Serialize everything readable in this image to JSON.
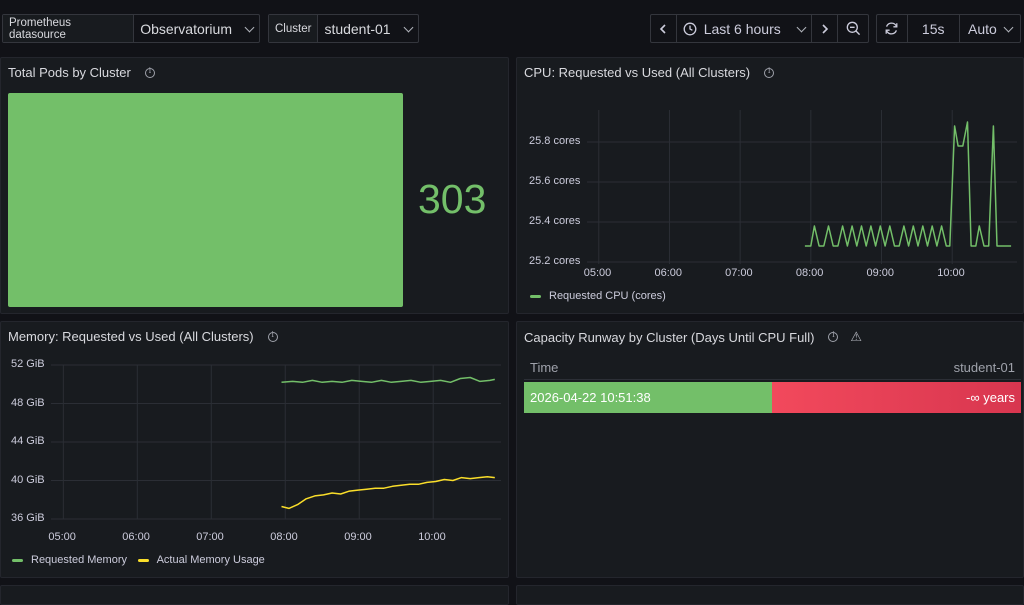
{
  "toolbar": {
    "datasource_label": "Prometheus datasource",
    "datasource_value": "Observatorium",
    "cluster_label": "Cluster",
    "cluster_value": "student-01",
    "time_range": "Last 6 hours",
    "refresh_interval": "15s",
    "auto_label": "Auto"
  },
  "panels": {
    "pods": {
      "title": "Total Pods by Cluster",
      "value": "303",
      "color": "#73bf69"
    },
    "cpu": {
      "title": "CPU: Requested vs Used (All Clusters)"
    },
    "memory": {
      "title": "Memory: Requested vs Used (All Clusters)"
    },
    "runway": {
      "title": "Capacity Runway by Cluster (Days Until CPU Full)",
      "col_time": "Time",
      "col_cluster": "student-01",
      "row_time": "2026-04-22 10:51:38",
      "row_value": "-∞ years",
      "green": "#73bf69",
      "red": "#f2495c"
    }
  },
  "chart_data": [
    {
      "type": "line",
      "title": "CPU: Requested vs Used (All Clusters)",
      "x_ticks": [
        "05:00",
        "06:00",
        "07:00",
        "08:00",
        "09:00",
        "10:00"
      ],
      "y_ticks": [
        "25.2 cores",
        "25.4 cores",
        "25.6 cores",
        "25.8 cores"
      ],
      "y_tick_values": [
        25.2,
        25.4,
        25.6,
        25.8
      ],
      "xlim": [
        "04:50",
        "10:55"
      ],
      "ylim": [
        25.19,
        25.96
      ],
      "grid": true,
      "legend_position": "bottom-left",
      "series": [
        {
          "name": "Requested CPU (cores)",
          "color": "#73bf69",
          "x": [
            "07:55",
            "08:00",
            "08:03",
            "08:07",
            "08:11",
            "08:15",
            "08:19",
            "08:23",
            "08:27",
            "08:31",
            "08:35",
            "08:39",
            "08:43",
            "08:47",
            "08:51",
            "08:55",
            "08:59",
            "09:03",
            "09:07",
            "09:11",
            "09:15",
            "09:19",
            "09:23",
            "09:27",
            "09:31",
            "09:35",
            "09:39",
            "09:43",
            "09:47",
            "09:51",
            "09:55",
            "09:58",
            "10:02",
            "10:05",
            "10:09",
            "10:13",
            "10:16",
            "10:20",
            "10:23",
            "10:27",
            "10:31",
            "10:35",
            "10:38",
            "10:42",
            "10:46",
            "10:50"
          ],
          "y": [
            25.28,
            25.28,
            25.38,
            25.28,
            25.28,
            25.38,
            25.28,
            25.28,
            25.38,
            25.28,
            25.38,
            25.28,
            25.38,
            25.28,
            25.38,
            25.28,
            25.38,
            25.28,
            25.38,
            25.28,
            25.28,
            25.38,
            25.28,
            25.38,
            25.28,
            25.38,
            25.28,
            25.38,
            25.28,
            25.38,
            25.28,
            25.28,
            25.88,
            25.78,
            25.78,
            25.9,
            25.28,
            25.28,
            25.38,
            25.28,
            25.28,
            25.88,
            25.28,
            25.28,
            25.28,
            25.28
          ]
        }
      ]
    },
    {
      "type": "line",
      "title": "Memory: Requested vs Used (All Clusters)",
      "x_ticks": [
        "05:00",
        "06:00",
        "07:00",
        "08:00",
        "09:00",
        "10:00"
      ],
      "y_ticks": [
        "36 GiB",
        "40 GiB",
        "44 GiB",
        "48 GiB",
        "52 GiB"
      ],
      "y_tick_values": [
        36,
        40,
        44,
        48,
        52
      ],
      "xlim": [
        "04:50",
        "10:55"
      ],
      "ylim": [
        36,
        52
      ],
      "grid": true,
      "legend_position": "bottom-left",
      "series": [
        {
          "name": "Requested Memory",
          "color": "#73bf69",
          "x": [
            "07:57",
            "08:06",
            "08:14",
            "08:22",
            "08:30",
            "08:38",
            "08:46",
            "08:54",
            "09:02",
            "09:10",
            "09:18",
            "09:26",
            "09:34",
            "09:42",
            "09:50",
            "09:58",
            "10:06",
            "10:14",
            "10:22",
            "10:30",
            "10:38",
            "10:46",
            "10:50"
          ],
          "y": [
            50.2,
            50.3,
            50.2,
            50.4,
            50.2,
            50.3,
            50.2,
            50.4,
            50.3,
            50.2,
            50.4,
            50.2,
            50.3,
            50.4,
            50.2,
            50.3,
            50.4,
            50.2,
            50.6,
            50.7,
            50.3,
            50.4,
            50.5
          ]
        },
        {
          "name": "Actual Memory Usage",
          "color": "#fade2a",
          "x": [
            "07:57",
            "08:03",
            "08:10",
            "08:17",
            "08:24",
            "08:31",
            "08:38",
            "08:45",
            "08:52",
            "08:59",
            "09:06",
            "09:13",
            "09:20",
            "09:27",
            "09:34",
            "09:41",
            "09:48",
            "09:55",
            "10:02",
            "10:09",
            "10:16",
            "10:23",
            "10:30",
            "10:37",
            "10:44",
            "10:50"
          ],
          "y": [
            37.3,
            37.1,
            37.5,
            38.1,
            38.4,
            38.5,
            38.7,
            38.6,
            38.9,
            39.0,
            39.1,
            39.2,
            39.2,
            39.4,
            39.5,
            39.6,
            39.6,
            39.8,
            39.9,
            40.1,
            40.0,
            40.3,
            40.2,
            40.3,
            40.4,
            40.3
          ]
        }
      ]
    }
  ]
}
